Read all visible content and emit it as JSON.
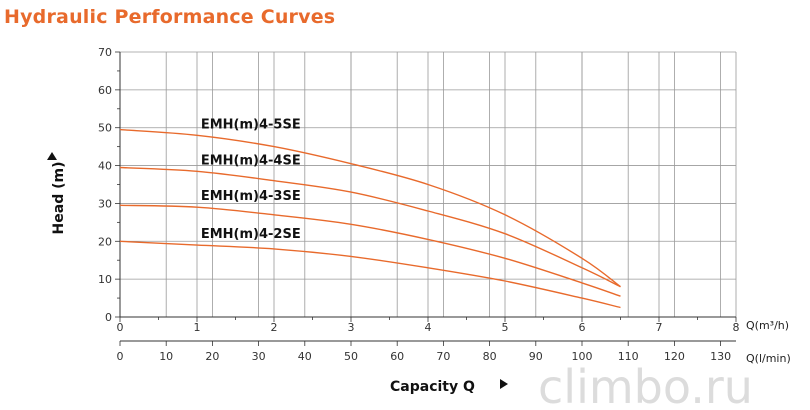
{
  "chart_data": {
    "type": "line",
    "title": "Hydraulic Performance Curves",
    "ylabel": "Head (m)",
    "xlabel": "Capacity Q",
    "x_unit_primary": "Q(m³/h)",
    "x_unit_secondary": "Q(l/min)",
    "ylim": [
      0,
      70
    ],
    "y_ticks": [
      0,
      10,
      20,
      30,
      40,
      50,
      60,
      70
    ],
    "xlim": [
      0,
      8
    ],
    "x_ticks": [
      0,
      1,
      2,
      3,
      4,
      5,
      6,
      7,
      8
    ],
    "x2_ticks": [
      0,
      10,
      20,
      30,
      40,
      50,
      60,
      70,
      80,
      90,
      100,
      110,
      120,
      130
    ],
    "grid": true,
    "series": [
      {
        "name": "EMH(m)4-5SE",
        "x": [
          0,
          1,
          2,
          3,
          4,
          5,
          6,
          6.5
        ],
        "y": [
          49.5,
          48,
          45,
          40.5,
          35,
          27,
          15.5,
          8
        ]
      },
      {
        "name": "EMH(m)4-4SE",
        "x": [
          0,
          1,
          2,
          3,
          4,
          5,
          6,
          6.5
        ],
        "y": [
          39.5,
          38.5,
          36,
          33,
          28,
          22,
          13,
          8
        ]
      },
      {
        "name": "EMH(m)4-3SE",
        "x": [
          0,
          1,
          2,
          3,
          4,
          5,
          6,
          6.5
        ],
        "y": [
          29.5,
          29,
          27,
          24.5,
          20.5,
          15.5,
          9,
          5.5
        ]
      },
      {
        "name": "EMH(m)4-2SE",
        "x": [
          0,
          1,
          2,
          3,
          4,
          5,
          6,
          6.5
        ],
        "y": [
          20,
          19,
          18,
          16,
          13,
          9.5,
          5,
          2.5
        ]
      }
    ],
    "colors": {
      "curve": "#e86a2c",
      "grid": "#9a9a9a",
      "axis": "#333333",
      "title": "#e86a2c"
    }
  },
  "watermark": "climbo.ru"
}
